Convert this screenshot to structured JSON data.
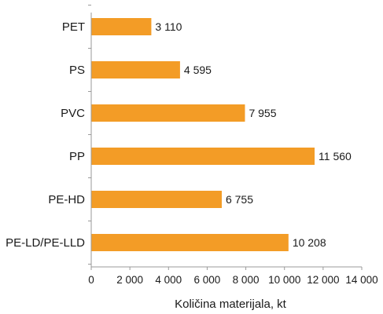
{
  "chart_data": {
    "type": "bar",
    "orientation": "horizontal",
    "categories": [
      "PET",
      "PS",
      "PVC",
      "PP",
      "PE-HD",
      "PE-LD/PE-LLD"
    ],
    "values": [
      3110,
      4595,
      7955,
      11560,
      6755,
      10208
    ],
    "value_labels": [
      "3 110",
      "4 595",
      "7 955",
      "11 560",
      "6 755",
      "10 208"
    ],
    "xlim": [
      0,
      14000
    ],
    "xticks": [
      0,
      2000,
      4000,
      6000,
      8000,
      10000,
      12000,
      14000
    ],
    "xtick_labels": [
      "0",
      "2 000",
      "4 000",
      "6 000",
      "8 000",
      "10 000",
      "12 000",
      "14 000"
    ],
    "xlabel": "Količina materijala, kt",
    "ylabel": "",
    "title": "",
    "grid": false,
    "legend": "none",
    "bar_color": "#f39c26",
    "axis_color": "#9a9a9a"
  }
}
